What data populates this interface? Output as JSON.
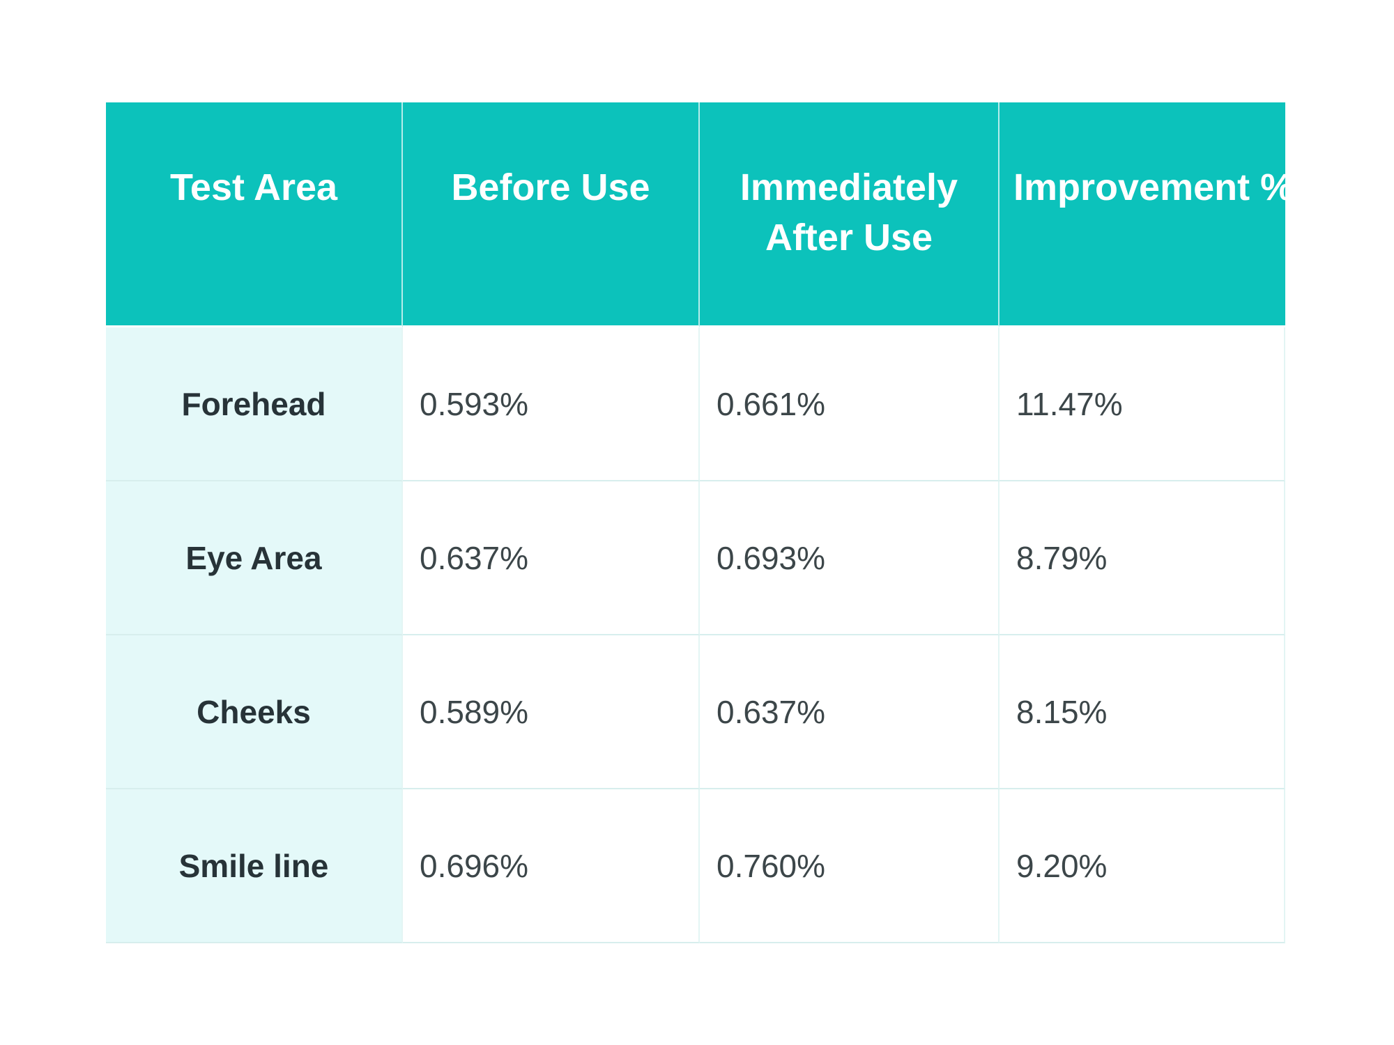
{
  "colors": {
    "header_teal": "#0cc2bb",
    "row_label_cyan": "#e4f9f9",
    "grid_line": "#d7eeed",
    "header_text": "#ffffff",
    "body_text": "#3c4649"
  },
  "chart_data": {
    "type": "table",
    "columns": [
      "Test Area",
      "Before Use",
      "Immediately After Use",
      "Improvement %"
    ],
    "rows": [
      [
        "Forehead",
        "0.593%",
        "0.661%",
        "11.47%"
      ],
      [
        "Eye Area",
        "0.637%",
        "0.693%",
        "8.79%"
      ],
      [
        "Cheeks",
        "0.589%",
        "0.637%",
        "8.15%"
      ],
      [
        "Smile line",
        "0.696%",
        "0.760%",
        "9.20%"
      ]
    ],
    "numeric_rows": [
      {
        "area": "Forehead",
        "before_pct": 0.593,
        "after_pct": 0.661,
        "improvement_pct": 11.47
      },
      {
        "area": "Eye Area",
        "before_pct": 0.637,
        "after_pct": 0.693,
        "improvement_pct": 8.79
      },
      {
        "area": "Cheeks",
        "before_pct": 0.589,
        "after_pct": 0.637,
        "improvement_pct": 8.15
      },
      {
        "area": "Smile line",
        "before_pct": 0.696,
        "after_pct": 0.76,
        "improvement_pct": 9.2
      }
    ],
    "title": "",
    "legend": "none",
    "grid": true
  }
}
